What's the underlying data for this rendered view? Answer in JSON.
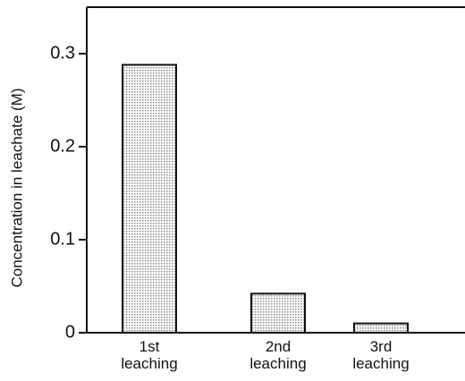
{
  "chart_data": {
    "type": "bar",
    "y_label": "Concentration in leachate (M)",
    "categories": [
      "1st leaching",
      "2nd leaching",
      "3rd leaching"
    ],
    "values": [
      0.288,
      0.042,
      0.01
    ],
    "color": "#8a8a8a",
    "ylim": [
      0,
      0.35
    ],
    "yticks": [
      0,
      0.1,
      0.2,
      0.3
    ]
  }
}
